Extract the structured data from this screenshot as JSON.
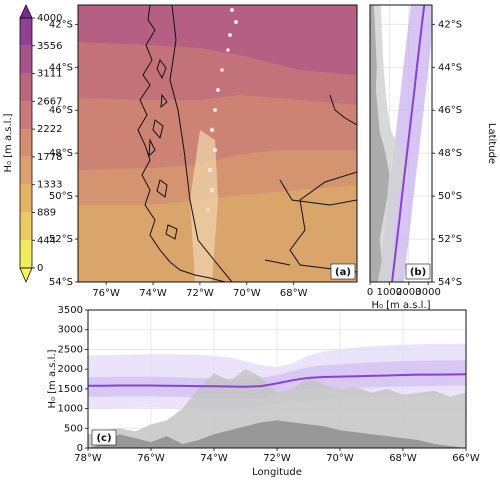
{
  "chart_data": [
    {
      "type": "colorbar",
      "label": "H₀ [m a.s.l.]",
      "lim": [
        0,
        4000
      ],
      "ticks": [
        0,
        444,
        889,
        1333,
        1778,
        2222,
        2667,
        3111,
        3556,
        4000
      ],
      "colors": [
        "#f2ec5c",
        "#ebcb60",
        "#e4b465",
        "#dda06b",
        "#d58c71",
        "#ca7878",
        "#bc6580",
        "#aa5189",
        "#913f91"
      ],
      "extend_colors": [
        "#f6f55a",
        "#7b2a94"
      ]
    },
    {
      "type": "map",
      "panel_label": "(a)",
      "xlim": [
        -77.2,
        -65.3
      ],
      "ylim": [
        -54,
        -41.1
      ],
      "xticks": [
        {
          "value": -76,
          "label": "76°W"
        },
        {
          "value": -74,
          "label": "74°W"
        },
        {
          "value": -72,
          "label": "72°W"
        },
        {
          "value": -70,
          "label": "70°W"
        },
        {
          "value": -68,
          "label": "68°W"
        }
      ],
      "yticks": [
        {
          "value": -42,
          "label": "42°S"
        },
        {
          "value": -44,
          "label": "44°S"
        },
        {
          "value": -46,
          "label": "46°S"
        },
        {
          "value": -48,
          "label": "48°S"
        },
        {
          "value": -50,
          "label": "50°S"
        },
        {
          "value": -52,
          "label": "52°S"
        },
        {
          "value": -54,
          "label": "54°S"
        }
      ]
    },
    {
      "type": "line",
      "orientation": "vertical",
      "panel_label": "(b)",
      "xlabel": "H₀ [m a.s.l.]",
      "ylabel": "Latitude",
      "grid": true,
      "xlim": [
        0,
        3200
      ],
      "xticks": [
        0,
        1000,
        2000,
        3000
      ],
      "ylim": [
        -54,
        -41.1
      ],
      "yticks": [
        {
          "value": -42,
          "label": "42°S"
        },
        {
          "value": -44,
          "label": "44°S"
        },
        {
          "value": -46,
          "label": "46°S"
        },
        {
          "value": -48,
          "label": "48°S"
        },
        {
          "value": -50,
          "label": "50°S"
        },
        {
          "value": -52,
          "label": "52°S"
        },
        {
          "value": -54,
          "label": "54°S"
        }
      ],
      "y": [
        -54,
        -53,
        -52,
        -51,
        -50,
        -49,
        -48,
        -47,
        -46,
        -45,
        -44,
        -43,
        -42,
        -41.1
      ],
      "terrain_max": {
        "color": "#d2d2d2",
        "values": [
          1400,
          1600,
          1200,
          1300,
          1500,
          2000,
          1700,
          1100,
          900,
          800,
          700,
          650,
          600,
          550
        ]
      },
      "terrain_mean": {
        "color": "#a3a3a3",
        "values": [
          400,
          600,
          500,
          700,
          900,
          1000,
          800,
          500,
          400,
          300,
          350,
          300,
          250,
          200
        ]
      },
      "band_outer": {
        "color": "#c9b3f0",
        "lower": [
          440,
          570,
          700,
          830,
          950,
          1080,
          1210,
          1340,
          1470,
          1600,
          1720,
          1850,
          1980,
          2100
        ],
        "upper": [
          1740,
          1870,
          2000,
          2130,
          2250,
          2380,
          2510,
          2640,
          2770,
          2900,
          3020,
          3150,
          3180,
          3200
        ]
      },
      "line": {
        "color": "#8a3fd6",
        "values": [
          1140,
          1270,
          1400,
          1530,
          1650,
          1780,
          1910,
          2040,
          2170,
          2300,
          2420,
          2550,
          2680,
          2800
        ]
      }
    },
    {
      "type": "line",
      "orientation": "horizontal",
      "panel_label": "(c)",
      "xlabel": "Longitude",
      "ylabel": "H₀ [m a.s.l.]",
      "grid": true,
      "xlim": [
        -78,
        -66
      ],
      "xticks": [
        {
          "value": -78,
          "label": "78°W"
        },
        {
          "value": -76,
          "label": "76°W"
        },
        {
          "value": -74,
          "label": "74°W"
        },
        {
          "value": -72,
          "label": "72°W"
        },
        {
          "value": -70,
          "label": "70°W"
        },
        {
          "value": -68,
          "label": "68°W"
        },
        {
          "value": -66,
          "label": "66°W"
        }
      ],
      "ylim": [
        0,
        3500
      ],
      "yticks": [
        0,
        500,
        1000,
        1500,
        2000,
        2500,
        3000,
        3500
      ],
      "x": [
        -78,
        -77.5,
        -77,
        -76.5,
        -76,
        -75.5,
        -75,
        -74.5,
        -74,
        -73.5,
        -73,
        -72.5,
        -72,
        -71.5,
        -71,
        -70.5,
        -70,
        -69.5,
        -69,
        -68.5,
        -68,
        -67.5,
        -67,
        -66.5,
        -66
      ],
      "band_outer": {
        "color": "#e4d9f7",
        "lower": [
          1000,
          1000,
          1010,
          1020,
          1020,
          1010,
          1000,
          990,
          980,
          980,
          1000,
          1050,
          1100,
          1150,
          1200,
          1220,
          1250,
          1270,
          1280,
          1290,
          1300,
          1300,
          1310,
          1310,
          1320
        ],
        "upper": [
          2350,
          2350,
          2360,
          2370,
          2380,
          2380,
          2370,
          2360,
          2340,
          2300,
          2200,
          2100,
          2050,
          2150,
          2350,
          2450,
          2500,
          2550,
          2580,
          2600,
          2620,
          2630,
          2640,
          2640,
          2650
        ]
      },
      "band_inner": {
        "color": "#d2c0f2",
        "lower": [
          1300,
          1300,
          1310,
          1310,
          1310,
          1300,
          1290,
          1280,
          1270,
          1260,
          1250,
          1260,
          1350,
          1450,
          1500,
          1500,
          1520,
          1530,
          1540,
          1550,
          1560,
          1570,
          1570,
          1580,
          1580
        ],
        "upper": [
          1800,
          1800,
          1810,
          1810,
          1810,
          1800,
          1790,
          1780,
          1770,
          1760,
          1750,
          1780,
          1850,
          1950,
          2050,
          2100,
          2120,
          2150,
          2170,
          2190,
          2200,
          2210,
          2220,
          2220,
          2230
        ]
      },
      "terrain_max": {
        "color": "#c4c4c4",
        "values": [
          350,
          450,
          500,
          420,
          600,
          700,
          1000,
          1500,
          1900,
          1700,
          2000,
          1800,
          1400,
          1500,
          1800,
          1600,
          1500,
          1550,
          1400,
          1500,
          1350,
          1400,
          1450,
          1300,
          1400
        ]
      },
      "terrain_mean": {
        "color": "#8e8e8e",
        "values": [
          0,
          100,
          350,
          250,
          150,
          300,
          100,
          200,
          350,
          450,
          550,
          650,
          700,
          650,
          600,
          550,
          450,
          400,
          350,
          300,
          250,
          200,
          100,
          50,
          0
        ]
      },
      "line": {
        "color": "#8a3fd6",
        "values": [
          1580,
          1580,
          1585,
          1585,
          1585,
          1580,
          1575,
          1570,
          1565,
          1560,
          1555,
          1570,
          1640,
          1720,
          1780,
          1800,
          1810,
          1820,
          1830,
          1840,
          1850,
          1860,
          1860,
          1865,
          1870
        ]
      }
    }
  ]
}
